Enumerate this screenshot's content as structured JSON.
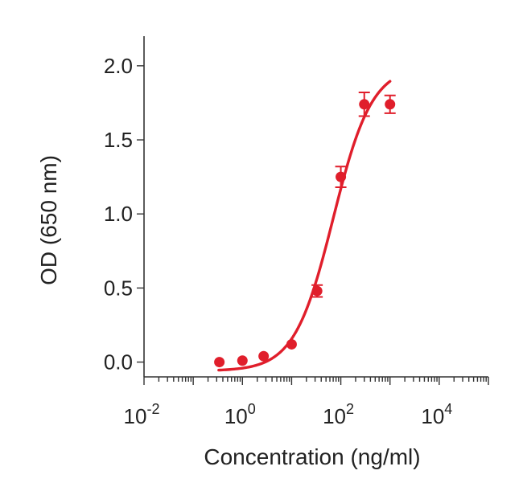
{
  "chart_data": {
    "type": "scatter",
    "title": "",
    "xlabel": "Concentration (ng/ml)",
    "ylabel": "OD (650 nm)",
    "x_scale": "log10",
    "xlim": [
      0.01,
      100000
    ],
    "ylim": [
      -0.1,
      2.2
    ],
    "x_ticks": [
      {
        "base": "10",
        "exp": "-2",
        "value": 0.01
      },
      {
        "base": "10",
        "exp": "0",
        "value": 1
      },
      {
        "base": "10",
        "exp": "2",
        "value": 100
      },
      {
        "base": "10",
        "exp": "4",
        "value": 10000
      }
    ],
    "y_ticks": [
      {
        "label": "0.0",
        "value": 0.0
      },
      {
        "label": "0.5",
        "value": 0.5
      },
      {
        "label": "1.0",
        "value": 1.0
      },
      {
        "label": "1.5",
        "value": 1.5
      },
      {
        "label": "2.0",
        "value": 2.0
      }
    ],
    "grid": false,
    "color": "#e01e2b",
    "points": [
      {
        "x": 0.34,
        "y": 0.0,
        "err": 0
      },
      {
        "x": 1.0,
        "y": 0.01,
        "err": 0
      },
      {
        "x": 2.7,
        "y": 0.04,
        "err": 0
      },
      {
        "x": 10,
        "y": 0.12,
        "err": 0
      },
      {
        "x": 33,
        "y": 0.48,
        "err": 0.04
      },
      {
        "x": 100,
        "y": 1.25,
        "err": 0.07
      },
      {
        "x": 300,
        "y": 1.74,
        "err": 0.08
      },
      {
        "x": 1000,
        "y": 1.74,
        "err": 0.06
      }
    ],
    "fit": {
      "model": "4PL",
      "bottom": -0.06,
      "top": 2.0,
      "ec50": 70,
      "hill": 1.1,
      "x_range": [
        0.33,
        1000
      ]
    }
  }
}
